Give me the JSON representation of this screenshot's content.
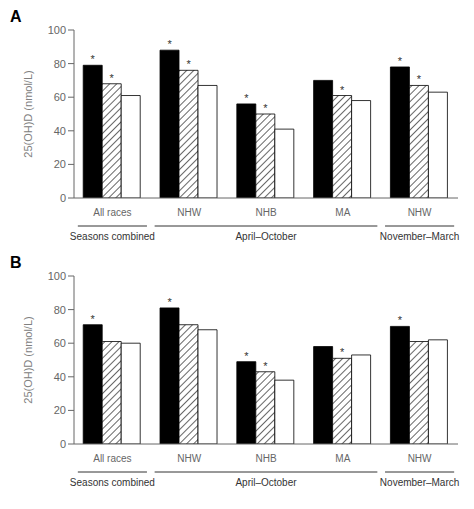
{
  "chart_data": [
    {
      "type": "bar",
      "title": "A",
      "ylabel": "25(OH)D (nmol/L)",
      "categories": [
        "All races",
        "NHW",
        "NHB",
        "MA",
        "NHW"
      ],
      "series": [
        {
          "color": "#000000",
          "values": [
            79,
            88,
            56,
            70,
            78
          ],
          "annotations": [
            "*",
            "*",
            "*",
            null,
            "*"
          ]
        },
        {
          "color": "#ffffff",
          "values": [
            68,
            76,
            50,
            61,
            67
          ],
          "annotations": [
            "*",
            "*",
            "*",
            "*",
            "*"
          ]
        },
        {
          "color": "#ffffff",
          "values": [
            61,
            67,
            41,
            58,
            63
          ],
          "annotations": [
            null,
            null,
            null,
            null,
            null
          ]
        }
      ],
      "category_groups": [
        {
          "text": "Seasons combined",
          "categories": [
            0
          ]
        },
        {
          "text": "April–October",
          "categories": [
            1,
            2,
            3
          ]
        },
        {
          "text": "November–March",
          "categories": [
            4
          ]
        }
      ],
      "ylim": [
        0,
        100
      ],
      "yticks": [
        0,
        20,
        40,
        60,
        80,
        100
      ],
      "grid": false
    },
    {
      "type": "bar",
      "title": "B",
      "ylabel": "25(OH)D (nmol/L)",
      "categories": [
        "All races",
        "NHW",
        "NHB",
        "MA",
        "NHW"
      ],
      "series": [
        {
          "color": "#000000",
          "values": [
            71,
            81,
            49,
            58,
            70
          ],
          "annotations": [
            "*",
            "*",
            "*",
            null,
            "*"
          ]
        },
        {
          "color": "#ffffff",
          "values": [
            61,
            71,
            43,
            51,
            61
          ],
          "annotations": [
            null,
            null,
            "*",
            "*",
            null
          ]
        },
        {
          "color": "#ffffff",
          "values": [
            60,
            68,
            38,
            53,
            62
          ],
          "annotations": [
            null,
            null,
            null,
            null,
            null
          ]
        }
      ],
      "category_groups": [
        {
          "text": "Seasons combined",
          "categories": [
            0
          ]
        },
        {
          "text": "April–October",
          "categories": [
            1,
            2,
            3
          ]
        },
        {
          "text": "November–March",
          "categories": [
            4
          ]
        }
      ],
      "ylim": [
        0,
        100
      ],
      "yticks": [
        0,
        20,
        40,
        60,
        80,
        100
      ],
      "grid": false
    }
  ]
}
